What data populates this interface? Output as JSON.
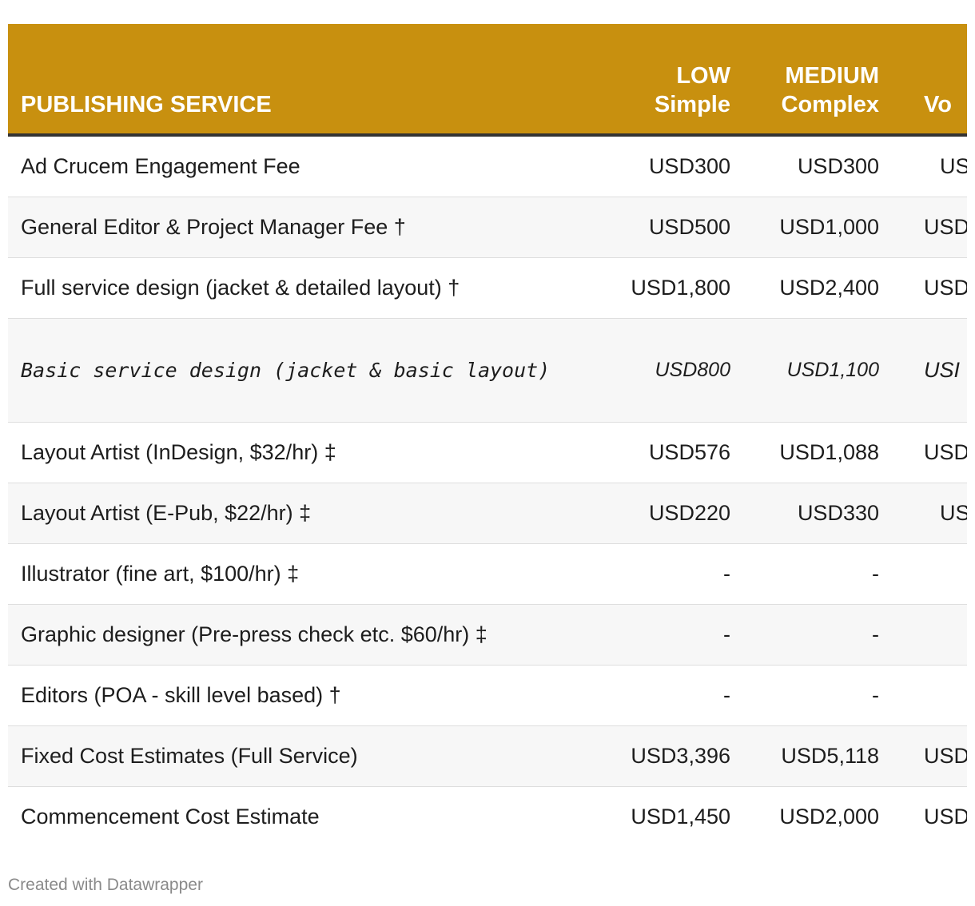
{
  "header": {
    "service": "PUBLISHING SERVICE",
    "low_line1": "LOW",
    "low_line2": "Simple",
    "medium_line1": "MEDIUM",
    "medium_line2": "Complex",
    "volume_line2": "Vo"
  },
  "rows": [
    {
      "service": "Ad Crucem Engagement Fee",
      "low": "USD300",
      "medium": "USD300",
      "volume": "US"
    },
    {
      "service": "General Editor & Project Manager Fee †",
      "low": "USD500",
      "medium": "USD1,000",
      "volume": "USD"
    },
    {
      "service": "Full service design (jacket & detailed layout) †",
      "low": "USD1,800",
      "medium": "USD2,400",
      "volume": "USD"
    },
    {
      "service": "Basic service design (jacket & basic layout)",
      "low": "USD800",
      "medium": "USD1,100",
      "volume": "USI"
    },
    {
      "service": "Layout Artist (InDesign, $32/hr) ‡",
      "low": "USD576",
      "medium": "USD1,088",
      "volume": "USD"
    },
    {
      "service": "Layout Artist (E-Pub, $22/hr) ‡",
      "low": "USD220",
      "medium": "USD330",
      "volume": "US"
    },
    {
      "service": "Illustrator (fine art, $100/hr) ‡",
      "low": "-",
      "medium": "-",
      "volume": ""
    },
    {
      "service": "Graphic designer (Pre-press check etc. $60/hr) ‡",
      "low": "-",
      "medium": "-",
      "volume": ""
    },
    {
      "service": "Editors (POA - skill level based) †",
      "low": "-",
      "medium": "-",
      "volume": ""
    },
    {
      "service": "Fixed Cost Estimates (Full Service)",
      "low": "USD3,396",
      "medium": "USD5,118",
      "volume": "USD"
    },
    {
      "service": "Commencement Cost Estimate",
      "low": "USD1,450",
      "medium": "USD2,000",
      "volume": "USD"
    }
  ],
  "footer": {
    "credit": "Created with Datawrapper"
  },
  "colors": {
    "header_bg": "#c8900f",
    "header_text": "#ffffff",
    "row_alt_bg": "#f7f7f7",
    "footer_text": "#8a8a8a"
  }
}
